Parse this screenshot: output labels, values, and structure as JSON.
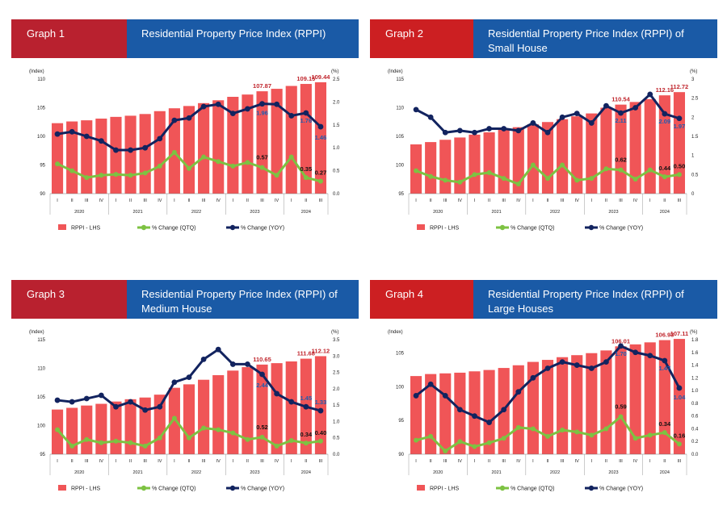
{
  "charts": [
    {
      "graph_label": "Graph 1",
      "title_line1": "Residential Property Price Index (RPPI)",
      "title_line2": ""
    },
    {
      "graph_label": "Graph 2",
      "title_line1": "Residential Property Price Index (RPPI) of",
      "title_line2": "Small House"
    },
    {
      "graph_label": "Graph 3",
      "title_line1": "Residential Property Price Index (RPPI) of",
      "title_line2": "Medium House"
    },
    {
      "graph_label": "Graph 4",
      "title_line1": "Residential Property Price Index (RPPI) of",
      "title_line2": "Large Houses"
    }
  ],
  "colors": {
    "bar": "#f05557",
    "qtq": "#7dc242",
    "yoy": "#12235f",
    "label_red": "#c0262d",
    "label_blue": "#1f5db0"
  },
  "chart_data": [
    {
      "type": "bar",
      "title": "Residential Property Price Index (RPPI)",
      "ylabel_left": "(Index)",
      "ylabel_right": "(%)",
      "quarters": [
        "I",
        "II",
        "III",
        "IV",
        "I",
        "II",
        "III",
        "IV",
        "I",
        "II",
        "III",
        "IV",
        "I",
        "II",
        "III",
        "IV",
        "I",
        "II",
        "III"
      ],
      "years": [
        "2020",
        "2021",
        "2022",
        "2023",
        "2024"
      ],
      "ylim_left": [
        90,
        110
      ],
      "yticks_left": [
        90,
        95,
        100,
        105,
        110
      ],
      "ylim_right": [
        0,
        2.5
      ],
      "yticks_right": [
        "0.0",
        "0.5",
        "1.0",
        "1.5",
        "2.0",
        "2.5"
      ],
      "series": [
        {
          "name": "RPPI - LHS",
          "axis": "left",
          "kind": "bar",
          "values": [
            102.3,
            102.6,
            102.8,
            103.1,
            103.4,
            103.6,
            103.9,
            104.4,
            104.9,
            105.3,
            105.8,
            106.3,
            106.9,
            107.3,
            107.87,
            108.3,
            108.8,
            109.15,
            109.44
          ]
        },
        {
          "name": "% Change (QTQ)",
          "axis": "right",
          "kind": "line",
          "values": [
            0.65,
            0.5,
            0.35,
            0.4,
            0.42,
            0.4,
            0.45,
            0.6,
            0.9,
            0.55,
            0.8,
            0.7,
            0.6,
            0.68,
            0.57,
            0.4,
            0.8,
            0.35,
            0.27
          ]
        },
        {
          "name": "% Change (YOY)",
          "axis": "right",
          "kind": "line",
          "values": [
            1.3,
            1.35,
            1.25,
            1.15,
            0.95,
            0.95,
            1.0,
            1.2,
            1.6,
            1.65,
            1.9,
            1.95,
            1.75,
            1.85,
            1.96,
            1.95,
            1.7,
            1.76,
            1.46
          ]
        }
      ],
      "data_labels": [
        {
          "text": "107.87",
          "series": 0,
          "index": 14,
          "color": "red"
        },
        {
          "text": "109.15",
          "series": 0,
          "index": 17,
          "color": "red"
        },
        {
          "text": "109.44",
          "series": 0,
          "index": 18,
          "color": "red"
        },
        {
          "text": "1.96",
          "series": 2,
          "index": 14,
          "color": "blue",
          "dy": 14
        },
        {
          "text": "1.76",
          "series": 2,
          "index": 17,
          "color": "blue",
          "dy": 12
        },
        {
          "text": "1.46",
          "series": 2,
          "index": 18,
          "color": "blue",
          "dy": 16
        },
        {
          "text": "0.57",
          "series": 1,
          "index": 14,
          "color": "black",
          "dy": -10
        },
        {
          "text": "0.35",
          "series": 1,
          "index": 17,
          "color": "black",
          "dy": -8
        },
        {
          "text": "0.27",
          "series": 1,
          "index": 18,
          "color": "black",
          "dy": -8
        }
      ]
    },
    {
      "type": "bar",
      "title": "Residential Property Price Index (RPPI) of Small House",
      "ylabel_left": "(Index)",
      "ylabel_right": "(%)",
      "quarters": [
        "I",
        "II",
        "III",
        "IV",
        "I",
        "II",
        "III",
        "IV",
        "I",
        "II",
        "III",
        "IV",
        "I",
        "II",
        "III",
        "IV",
        "I",
        "II",
        "III"
      ],
      "years": [
        "2020",
        "2021",
        "2022",
        "2023",
        "2024"
      ],
      "ylim_left": [
        95,
        115
      ],
      "yticks_left": [
        95,
        100,
        105,
        110,
        115
      ],
      "ylim_right": [
        0,
        3
      ],
      "yticks_right": [
        "0",
        "0.5",
        "1",
        "1.5",
        "2",
        "2.5",
        "3"
      ],
      "series": [
        {
          "name": "RPPI - LHS",
          "axis": "left",
          "kind": "bar",
          "values": [
            103.6,
            104.0,
            104.4,
            104.8,
            105.3,
            105.7,
            106.2,
            106.6,
            107.1,
            107.5,
            108.0,
            108.5,
            109.0,
            110.0,
            110.54,
            111.0,
            111.5,
            112.16,
            112.72
          ]
        },
        {
          "name": "% Change (QTQ)",
          "axis": "right",
          "kind": "line",
          "values": [
            0.6,
            0.45,
            0.35,
            0.3,
            0.5,
            0.55,
            0.4,
            0.25,
            0.75,
            0.4,
            0.75,
            0.35,
            0.4,
            0.65,
            0.62,
            0.38,
            0.62,
            0.44,
            0.5
          ]
        },
        {
          "name": "% Change (YOY)",
          "axis": "right",
          "kind": "line",
          "values": [
            2.2,
            2.0,
            1.6,
            1.65,
            1.6,
            1.7,
            1.7,
            1.65,
            1.85,
            1.6,
            2.0,
            2.1,
            1.85,
            2.3,
            2.11,
            2.25,
            2.6,
            2.09,
            1.97
          ]
        }
      ],
      "data_labels": [
        {
          "text": "110.54",
          "series": 0,
          "index": 14,
          "color": "red"
        },
        {
          "text": "112.16",
          "series": 0,
          "index": 17,
          "color": "red"
        },
        {
          "text": "112.72",
          "series": 0,
          "index": 18,
          "color": "red"
        },
        {
          "text": "2.11",
          "series": 2,
          "index": 14,
          "color": "blue",
          "dy": 12
        },
        {
          "text": "2.09",
          "series": 2,
          "index": 17,
          "color": "blue",
          "dy": 12
        },
        {
          "text": "1.97",
          "series": 2,
          "index": 18,
          "color": "blue",
          "dy": 12
        },
        {
          "text": "0.62",
          "series": 1,
          "index": 14,
          "color": "black",
          "dy": -10
        },
        {
          "text": "0.44",
          "series": 1,
          "index": 17,
          "color": "black",
          "dy": -8
        },
        {
          "text": "0.50",
          "series": 1,
          "index": 18,
          "color": "black",
          "dy": -8
        }
      ]
    },
    {
      "type": "bar",
      "title": "Residential Property Price Index (RPPI) of Medium House",
      "ylabel_left": "(Index)",
      "ylabel_right": "(%)",
      "quarters": [
        "I",
        "II",
        "III",
        "IV",
        "I",
        "II",
        "III",
        "IV",
        "I",
        "II",
        "III",
        "IV",
        "I",
        "II",
        "III",
        "IV",
        "I",
        "II",
        "III"
      ],
      "years": [
        "2020",
        "2021",
        "2022",
        "2023",
        "2024"
      ],
      "ylim_left": [
        95,
        115
      ],
      "yticks_left": [
        95,
        100,
        105,
        110,
        115
      ],
      "ylim_right": [
        0,
        3.5
      ],
      "yticks_right": [
        "0.0",
        "0.5",
        "1.0",
        "1.5",
        "2.0",
        "2.5",
        "3.0",
        "3.5"
      ],
      "series": [
        {
          "name": "RPPI - LHS",
          "axis": "left",
          "kind": "bar",
          "values": [
            102.8,
            103.1,
            103.5,
            103.8,
            104.2,
            104.6,
            104.9,
            105.4,
            106.6,
            107.2,
            108.0,
            108.8,
            109.6,
            110.2,
            110.65,
            110.9,
            111.2,
            111.68,
            112.12
          ]
        },
        {
          "name": "% Change (QTQ)",
          "axis": "right",
          "kind": "line",
          "values": [
            0.75,
            0.25,
            0.45,
            0.35,
            0.4,
            0.35,
            0.25,
            0.5,
            1.1,
            0.5,
            0.8,
            0.75,
            0.65,
            0.45,
            0.52,
            0.25,
            0.42,
            0.34,
            0.4
          ]
        },
        {
          "name": "% Change (YOY)",
          "axis": "right",
          "kind": "line",
          "values": [
            1.65,
            1.6,
            1.7,
            1.8,
            1.45,
            1.6,
            1.35,
            1.45,
            2.2,
            2.35,
            2.9,
            3.2,
            2.75,
            2.75,
            2.44,
            1.85,
            1.6,
            1.45,
            1.33
          ]
        }
      ],
      "data_labels": [
        {
          "text": "110.65",
          "series": 0,
          "index": 14,
          "color": "red"
        },
        {
          "text": "111.68",
          "series": 0,
          "index": 17,
          "color": "red"
        },
        {
          "text": "112.12",
          "series": 0,
          "index": 18,
          "color": "red"
        },
        {
          "text": "2.44",
          "series": 2,
          "index": 14,
          "color": "blue",
          "dy": 16
        },
        {
          "text": "1.45",
          "series": 2,
          "index": 17,
          "color": "blue",
          "dy": -8
        },
        {
          "text": "1.33",
          "series": 2,
          "index": 18,
          "color": "blue",
          "dy": -8
        },
        {
          "text": "0.52",
          "series": 1,
          "index": 14,
          "color": "black",
          "dy": -10
        },
        {
          "text": "0.34",
          "series": 1,
          "index": 17,
          "color": "black",
          "dy": -8
        },
        {
          "text": "0.40",
          "series": 1,
          "index": 18,
          "color": "black",
          "dy": -8
        }
      ]
    },
    {
      "type": "bar",
      "title": "Residential Property Price Index (RPPI) of Large Houses",
      "ylabel_left": "(Index)",
      "ylabel_right": "(%)",
      "quarters": [
        "I",
        "II",
        "III",
        "IV",
        "I",
        "II",
        "III",
        "IV",
        "I",
        "II",
        "III",
        "IV",
        "I",
        "II",
        "III",
        "IV",
        "I",
        "II",
        "III"
      ],
      "years": [
        "2020",
        "2021",
        "2022",
        "2023",
        "2024"
      ],
      "ylim_left": [
        90,
        107
      ],
      "yticks_left": [
        90,
        95,
        100,
        105
      ],
      "ylim_right": [
        0,
        1.8
      ],
      "yticks_right": [
        "0.0",
        "0.2",
        "0.4",
        "0.6",
        "0.8",
        "1.0",
        "1.2",
        "1.4",
        "1.6",
        "1.8"
      ],
      "series": [
        {
          "name": "RPPI - LHS",
          "axis": "left",
          "kind": "bar",
          "values": [
            101.6,
            101.9,
            102.0,
            102.1,
            102.3,
            102.5,
            102.8,
            103.2,
            103.7,
            104.0,
            104.4,
            104.7,
            105.0,
            105.4,
            106.01,
            106.3,
            106.6,
            106.93,
            107.11
          ]
        },
        {
          "name": "% Change (QTQ)",
          "axis": "right",
          "kind": "line",
          "values": [
            0.22,
            0.28,
            0.05,
            0.2,
            0.12,
            0.18,
            0.25,
            0.42,
            0.4,
            0.28,
            0.38,
            0.35,
            0.3,
            0.4,
            0.59,
            0.25,
            0.3,
            0.34,
            0.16
          ]
        },
        {
          "name": "% Change (YOY)",
          "axis": "right",
          "kind": "line",
          "values": [
            0.92,
            1.1,
            0.92,
            0.7,
            0.6,
            0.5,
            0.7,
            0.98,
            1.2,
            1.35,
            1.45,
            1.4,
            1.35,
            1.45,
            1.7,
            1.6,
            1.55,
            1.47,
            1.04
          ]
        }
      ],
      "data_labels": [
        {
          "text": "106.01",
          "series": 0,
          "index": 14,
          "color": "red"
        },
        {
          "text": "106.93",
          "series": 0,
          "index": 17,
          "color": "red"
        },
        {
          "text": "107.11",
          "series": 0,
          "index": 18,
          "color": "red"
        },
        {
          "text": "1.70",
          "series": 2,
          "index": 14,
          "color": "blue",
          "dy": 12
        },
        {
          "text": "1.47",
          "series": 2,
          "index": 17,
          "color": "blue",
          "dy": 12
        },
        {
          "text": "1.04",
          "series": 2,
          "index": 18,
          "color": "blue",
          "dy": 14
        },
        {
          "text": "0.59",
          "series": 1,
          "index": 14,
          "color": "black",
          "dy": -10
        },
        {
          "text": "0.34",
          "series": 1,
          "index": 17,
          "color": "black",
          "dy": -8
        },
        {
          "text": "0.16",
          "series": 1,
          "index": 18,
          "color": "black",
          "dy": -8
        }
      ]
    }
  ]
}
